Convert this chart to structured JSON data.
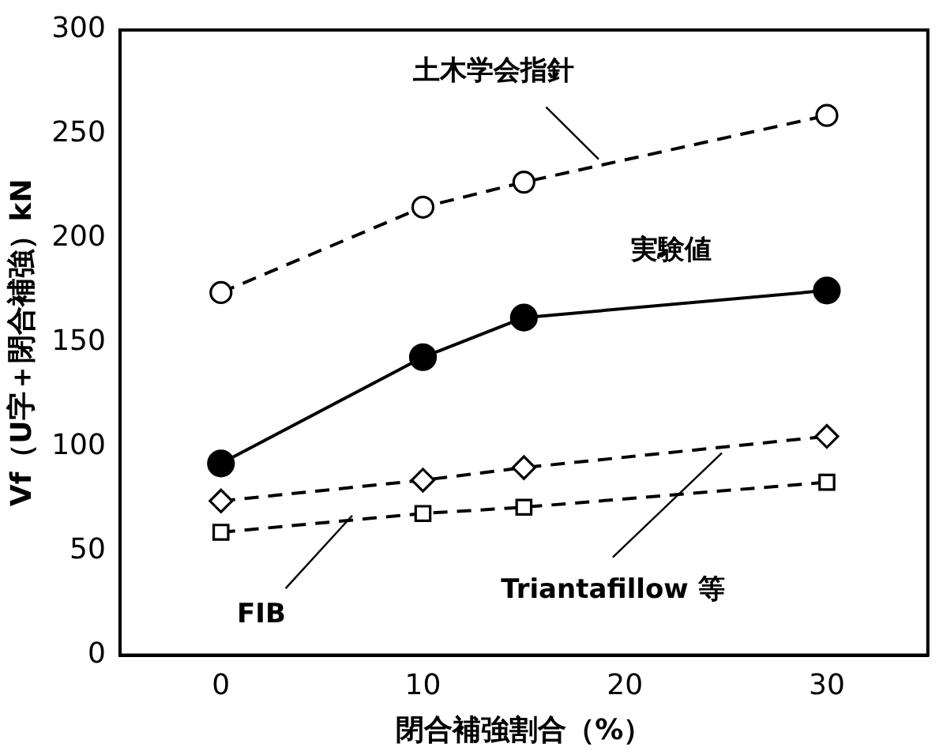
{
  "chart_data": {
    "type": "line",
    "xlabel": "閉合補強割合（%）",
    "ylabel": "Vf（U字＋閉合補強）kN",
    "x": [
      0,
      10,
      15,
      30
    ],
    "series": [
      {
        "name": "土木学会指針",
        "color": "#000000",
        "values": [
          174,
          215,
          227,
          259
        ],
        "marker": "circle",
        "line_style": "dashed"
      },
      {
        "name": "実験値",
        "color": "#000000",
        "values": [
          92,
          143,
          162,
          175
        ],
        "marker": "circle",
        "line_style": "solid"
      },
      {
        "name": "Triantafillow 等",
        "color": "#000000",
        "values": [
          74,
          84,
          90,
          105
        ],
        "marker": "diamond",
        "line_style": "dashed"
      },
      {
        "name": "FIB",
        "color": "#000000",
        "values": [
          59,
          68,
          71,
          83
        ],
        "marker": "square",
        "line_style": "dashed"
      }
    ],
    "xlim": [
      -5,
      35
    ],
    "xticks": [
      0,
      10,
      20,
      30
    ],
    "ylim": [
      0,
      300
    ],
    "yticks": [
      0,
      50,
      100,
      150,
      200,
      250,
      300
    ],
    "grid": false,
    "legend": false
  }
}
